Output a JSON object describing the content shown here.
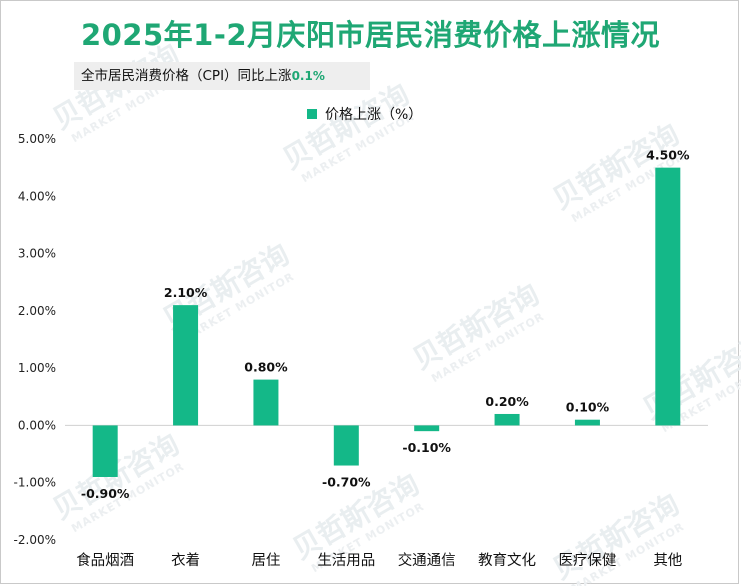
{
  "chart_data": {
    "type": "bar",
    "title": "2025年1-2月庆阳市居民消费价格上涨情况",
    "subtitle": {
      "text": "全市居民消费价格（CPI）同比上涨",
      "value": "0.1%"
    },
    "legend": {
      "label": "价格上涨（%）",
      "placement": "top-center"
    },
    "categories": [
      "食品烟酒",
      "衣着",
      "居住",
      "生活用品",
      "交通通信",
      "教育文化",
      "医疗保健",
      "其他"
    ],
    "series": [
      {
        "name": "价格上涨（%）",
        "values": [
          -0.9,
          2.1,
          0.8,
          -0.7,
          -0.1,
          0.2,
          0.1,
          4.5
        ],
        "labels": [
          "-0.90%",
          "2.10%",
          "0.80%",
          "-0.70%",
          "-0.10%",
          "0.20%",
          "0.10%",
          "4.50%"
        ]
      }
    ],
    "ylim": [
      -2,
      5
    ],
    "yticks": [
      5,
      4,
      3,
      2,
      1,
      0,
      -1,
      -2
    ],
    "ytick_labels": [
      "5.00%",
      "4.00%",
      "3.00%",
      "2.00%",
      "1.00%",
      "0.00%",
      "-1.00%",
      "-2.00%"
    ],
    "grid": false,
    "bar_color": "#14b888",
    "title_color": "#1fa774"
  },
  "watermark": {
    "text": "贝哲斯咨询",
    "subtext": "MARKET MONITOR"
  }
}
